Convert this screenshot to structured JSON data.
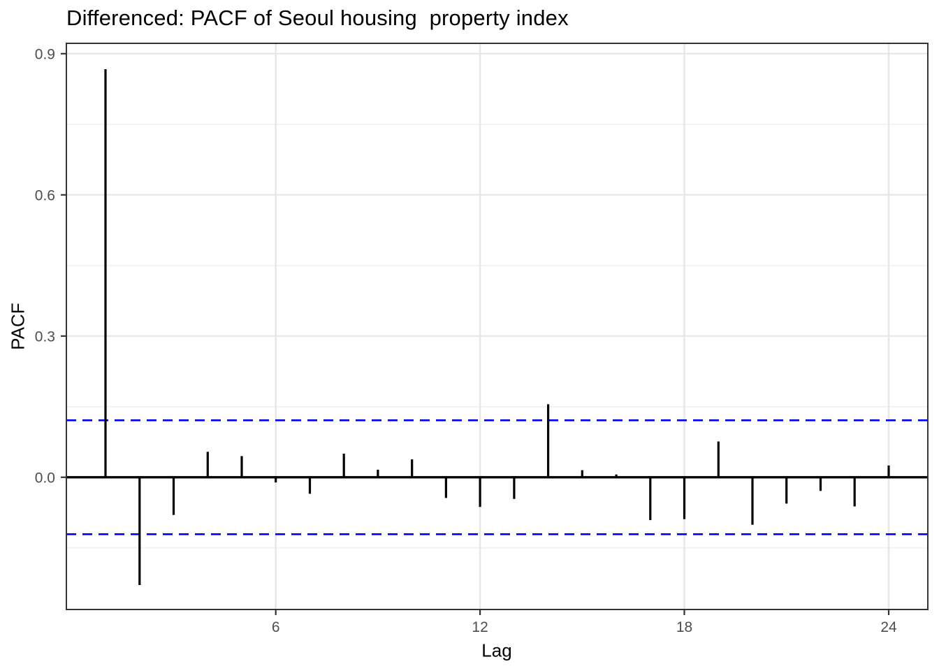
{
  "chart_data": {
    "type": "bar",
    "subtype": "pacf-stem-plot",
    "title": "Differenced: PACF of Seoul housing  property index",
    "xlabel": "Lag",
    "ylabel": "PACF",
    "x": [
      1,
      2,
      3,
      4,
      5,
      6,
      7,
      8,
      9,
      10,
      11,
      12,
      13,
      14,
      15,
      16,
      17,
      18,
      19,
      20,
      21,
      22,
      23,
      24
    ],
    "values": [
      0.867,
      -0.229,
      -0.08,
      0.054,
      0.045,
      -0.011,
      -0.035,
      0.05,
      0.016,
      0.038,
      -0.044,
      -0.063,
      -0.046,
      0.155,
      0.015,
      0.006,
      -0.091,
      -0.089,
      0.076,
      -0.101,
      -0.056,
      -0.029,
      -0.062,
      0.025
    ],
    "confidence_bounds": {
      "upper": 0.121,
      "lower": -0.121,
      "style": "dashed"
    },
    "x_ticks": [
      6,
      12,
      18,
      24
    ],
    "x_tick_labels": [
      "6",
      "12",
      "18",
      "24"
    ],
    "y_ticks": [
      0.0,
      0.3,
      0.6,
      0.9
    ],
    "y_tick_labels": [
      "0.0",
      "0.3",
      "0.6",
      "0.9"
    ],
    "y_minor_gridlines": [
      -0.15,
      0.15,
      0.45,
      0.75
    ],
    "xlim": [
      -0.15,
      25.15
    ],
    "ylim": [
      -0.281,
      0.922
    ],
    "grid": "major x and y shown, minor y shown, minor x hidden",
    "legend_position": "none",
    "colors": {
      "bar": "#000000",
      "zero_line": "#000000",
      "confidence_line": "#0000EE",
      "grid_major": "#E6E6E6",
      "grid_minor": "#F2F2F2",
      "panel_border": "#333333",
      "tick_mark": "#333333",
      "tick_label": "#4D4D4D",
      "title_text": "#000000",
      "panel_background": "#FFFFFF"
    }
  }
}
